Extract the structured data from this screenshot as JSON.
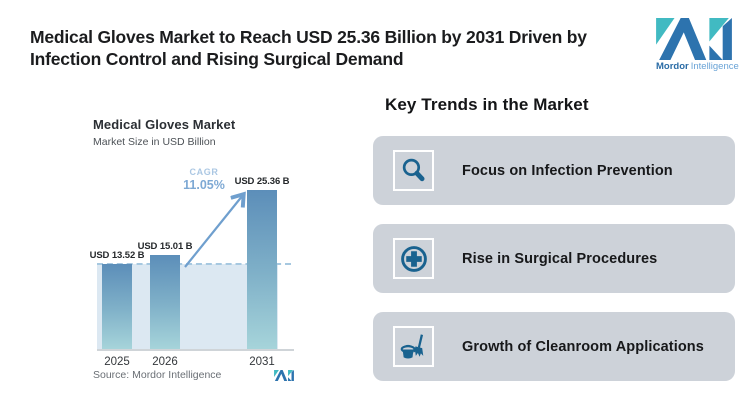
{
  "headline": {
    "line1": "Medical Gloves Market to Reach USD 25.36 Billion by 2031 Driven by",
    "line2": "Infection Control and Rising Surgical Demand"
  },
  "brand": {
    "name_bold": "Mordor",
    "name_light": "Intelligence"
  },
  "chart_data": {
    "type": "bar",
    "title": "Medical Gloves Market",
    "subtitle": "Market Size in USD Billion",
    "categories": [
      "2025",
      "2026",
      "2031"
    ],
    "values": [
      13.52,
      15.01,
      25.36
    ],
    "value_labels": [
      "USD 13.52 B",
      "USD 15.01 B",
      "USD 25.36 B"
    ],
    "cagr": {
      "label": "CAGR",
      "value": "11.05%"
    },
    "source": "Source: Mordor Intelligence",
    "ylim": [
      0,
      26
    ],
    "grid": "off",
    "annotations": "dashed reference line at 2025 value; growth arrow from 2026 bar to 2031 bar"
  },
  "trends": {
    "heading": "Key Trends in the Market",
    "items": [
      {
        "icon": "magnifier-icon",
        "label": "Focus on Infection Prevention"
      },
      {
        "icon": "medical-cross-circle-icon",
        "label": "Rise in Surgical Procedures"
      },
      {
        "icon": "cleaning-bucket-broom-icon",
        "label": "Growth of Cleanroom Applications"
      }
    ]
  },
  "colors": {
    "brand_blue": "#2d73ae",
    "brand_teal": "#41bac2",
    "icon_blue": "#19628f",
    "card_bg": "#cdd2d9",
    "bar_top": "#5c8eb9",
    "bar_bottom": "#a6d4da",
    "chart_shade": "#dce8f2",
    "dash_blue": "#a6c8e0",
    "arrow_blue": "#6f9fce",
    "cagr_label": "#abc7e3",
    "cagr_value": "#7ea9d4"
  }
}
